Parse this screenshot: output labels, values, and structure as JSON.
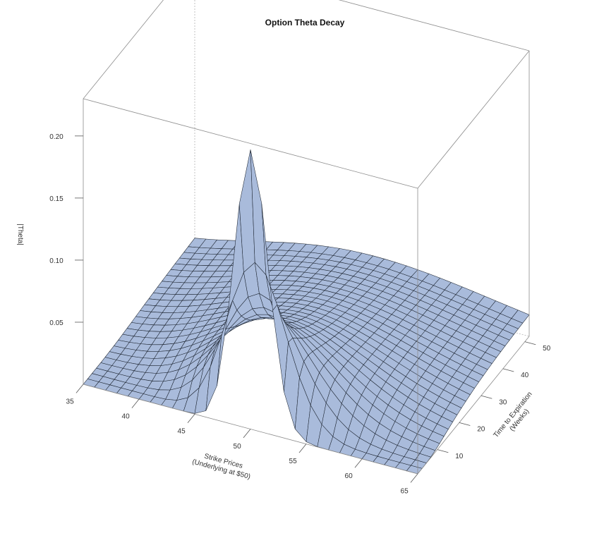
{
  "chart_data": {
    "type": "surface",
    "title": "Option Theta Decay",
    "xlabel": [
      "Strike Prices",
      "(Underlying at $50)"
    ],
    "ylabel": [
      "Time to Expiration",
      "(Weeks)"
    ],
    "zlabel": "|Theta|",
    "x_ticks": [
      35,
      40,
      45,
      50,
      55,
      60,
      65
    ],
    "y_ticks": [
      10,
      20,
      30,
      40,
      50
    ],
    "z_ticks": [
      "0.05",
      "0.10",
      "0.15",
      "0.20"
    ],
    "xlim": [
      35,
      65
    ],
    "ylim": [
      1,
      52
    ],
    "zlim": [
      0.0,
      0.23
    ],
    "peak": {
      "strike": 50,
      "weeks": 1,
      "theta": 0.225
    },
    "surface_color": "#a9bbdb",
    "mesh_color": "#1c2430",
    "grid_x_strikes": [
      35,
      36,
      37,
      38,
      39,
      40,
      41,
      42,
      43,
      44,
      45,
      46,
      47,
      48,
      49,
      50,
      51,
      52,
      53,
      54,
      55,
      56,
      57,
      58,
      59,
      60,
      61,
      62,
      63,
      64,
      65
    ],
    "grid_y_weeks": [
      1,
      3,
      5,
      7,
      9,
      11,
      13,
      15,
      17,
      19,
      21,
      23,
      25,
      27,
      29,
      31,
      33,
      35,
      37,
      39,
      41,
      43,
      45,
      47,
      49,
      52
    ]
  }
}
